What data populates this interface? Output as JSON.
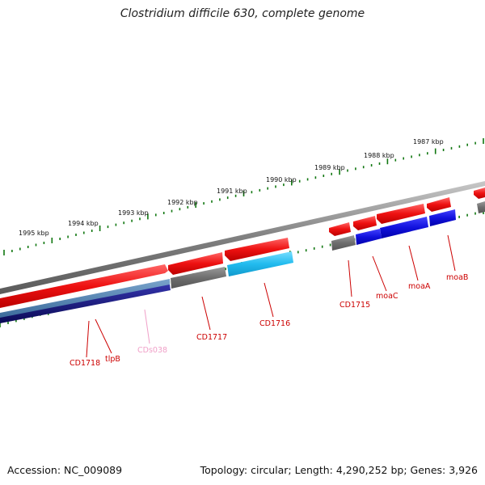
{
  "title": "Clostridium difficile 630, complete genome",
  "footer": {
    "accession": "Accession: NC_009089",
    "summary": "Topology: circular; Length: 4,290,252 bp; Genes: 3,926"
  },
  "scale_labels": [
    "1995 kbp",
    "1994 kbp",
    "1993 kbp",
    "1992 kbp",
    "1991 kbp",
    "1990 kbp",
    "1989 kbp",
    "1988 kbp",
    "1987 kbp"
  ],
  "gene_labels": [
    {
      "text": "CD1718",
      "color": "#cc0000"
    },
    {
      "text": "tlpB",
      "color": "#cc0000"
    },
    {
      "text": "CDs038",
      "color": "#f0a0c8"
    },
    {
      "text": "CD1717",
      "color": "#cc0000"
    },
    {
      "text": "CD1716",
      "color": "#cc0000"
    },
    {
      "text": "CD1715",
      "color": "#cc0000"
    },
    {
      "text": "moaC",
      "color": "#cc0000"
    },
    {
      "text": "moaA",
      "color": "#cc0000"
    },
    {
      "text": "moaB",
      "color": "#cc0000"
    }
  ],
  "colors": {
    "backbone": "#7a7a7a",
    "gene": "#ee1111",
    "cds_grey": "#6e6e6e",
    "cds_blue": "#1111dd",
    "cds_cyan": "#22bbee",
    "cds_steel": "#4a7aaa",
    "cds_navy": "#11116e",
    "ticks": "#117711"
  }
}
